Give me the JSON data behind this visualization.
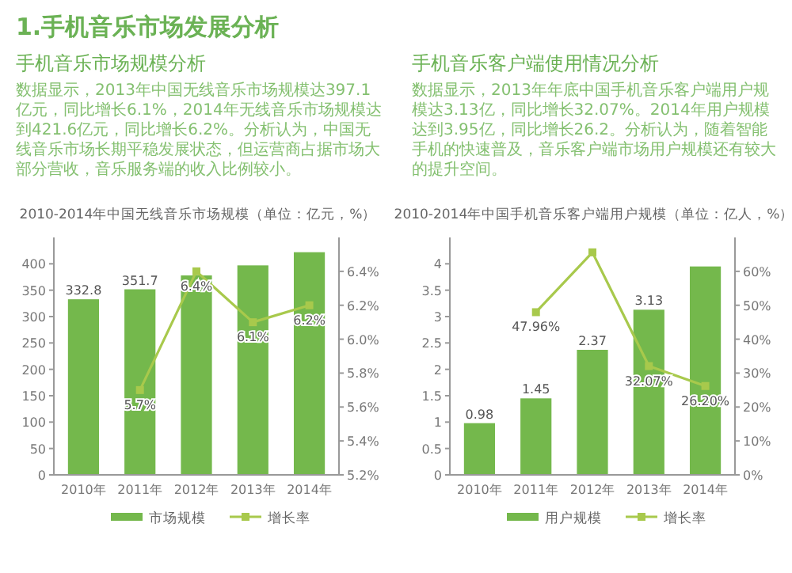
{
  "chart_data": [
    {
      "type": "bar",
      "title": "2010-2014年中国无线音乐市场规模（单位：亿元，%）",
      "subtitle": "手机音乐市场规模分析",
      "annotations": [
        "1.手机音乐市场发展分析",
        "数据显示，2013年中国无线音乐市场规模达397.1亿元，同比增长6.1%，2014年无线音乐市场规模达到421.6亿元，同比增长6.2%。分析认为，中国无线音乐市场长期平稳发展状态，但运营商占据市场大部分营收，音乐服务端的收入比例较小。"
      ],
      "categories": [
        "2010年",
        "2011年",
        "2012年",
        "2013年",
        "2014年"
      ],
      "series": [
        {
          "name": "市场规模",
          "color": "#74b84c",
          "values": [
            332.8,
            351.7,
            378,
            397,
            422
          ],
          "value_labels": [
            "332.8",
            "351.7",
            null,
            null,
            null
          ]
        },
        {
          "name": "增长率",
          "type": "line",
          "axis": "y2",
          "color": "#a8c94c",
          "marker": "square",
          "values": [
            null,
            5.7,
            6.4,
            6.1,
            6.2
          ],
          "value_labels": [
            null,
            "5.7%",
            "6.4%",
            "6.1%",
            "6.2%"
          ]
        }
      ],
      "ylim": [
        0,
        450
      ],
      "yticks": [
        0,
        50,
        100,
        150,
        200,
        250,
        300,
        350,
        400
      ],
      "y2lim": [
        5.2,
        6.6
      ],
      "y2ticks": [
        {
          "value": 5.2,
          "label": "5.2%"
        },
        {
          "value": 5.4,
          "label": "5.4%"
        },
        {
          "value": 5.6,
          "label": "5.6%"
        },
        {
          "value": 5.8,
          "label": "5.8%"
        },
        {
          "value": 6.0,
          "label": "6.0%"
        },
        {
          "value": 6.2,
          "label": "6.2%"
        },
        {
          "value": 6.4,
          "label": "6.4%"
        }
      ],
      "legend": "bottom"
    },
    {
      "type": "bar",
      "title": "2010-2014年中国手机音乐客户端用户规模（单位：亿人，%）",
      "subtitle": "手机音乐客户端使用情况分析",
      "annotations": [
        "数据显示，2013年年底中国手机音乐客户端用户规模达3.13亿，同比增长32.07%。2014年用户规模达到3.95亿，同比增长26.2。分析认为，随着智能手机的快速普及，音乐客户端市场用户规模还有较大的提升空间。"
      ],
      "categories": [
        "2010年",
        "2011年",
        "2012年",
        "2013年",
        "2014年"
      ],
      "series": [
        {
          "name": "用户规模",
          "color": "#74b84c",
          "values": [
            0.98,
            1.45,
            2.37,
            3.13,
            3.95
          ],
          "value_labels": [
            "0.98",
            "1.45",
            "2.37",
            "3.13",
            null
          ]
        },
        {
          "name": "增长率",
          "type": "line",
          "axis": "y2",
          "color": "#a8c94c",
          "marker": "square",
          "values": [
            null,
            47.96,
            65.6,
            32.07,
            26.2
          ],
          "value_labels": [
            null,
            "47.96%",
            null,
            "32.07%",
            "26.20%"
          ]
        }
      ],
      "ylim": [
        0,
        4.5
      ],
      "yticks": [
        0,
        0.5,
        1,
        1.5,
        2,
        2.5,
        3,
        3.5,
        4
      ],
      "y2lim": [
        0,
        70
      ],
      "y2ticks": [
        {
          "value": 0,
          "label": "0%"
        },
        {
          "value": 10,
          "label": "10%"
        },
        {
          "value": 20,
          "label": "20%"
        },
        {
          "value": 30,
          "label": "30%"
        },
        {
          "value": 40,
          "label": "40%"
        },
        {
          "value": 50,
          "label": "50%"
        },
        {
          "value": 60,
          "label": "60%"
        }
      ],
      "legend": "bottom"
    }
  ]
}
